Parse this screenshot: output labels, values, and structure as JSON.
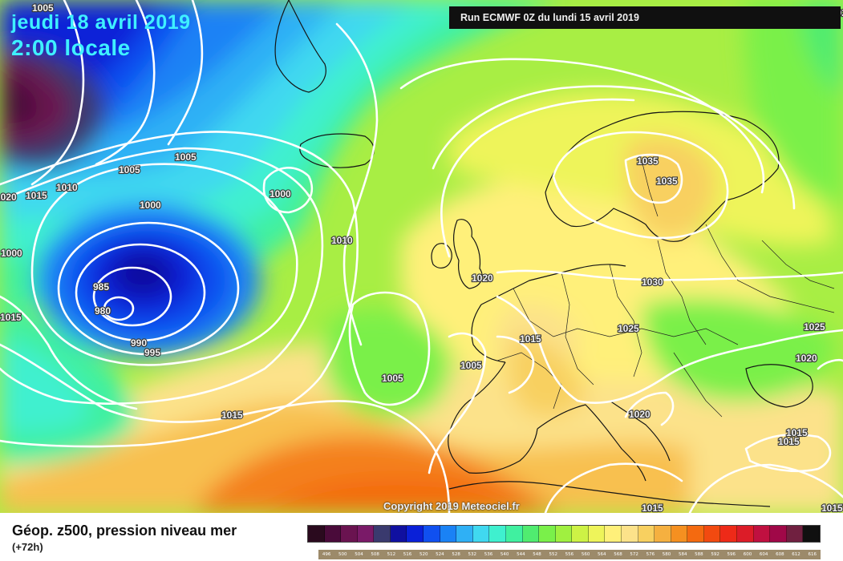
{
  "header": {
    "date_line1": "jeudi 18 avril 2019",
    "date_line2": "2:00 locale",
    "run_info": "Run ECMWF 0Z du lundi 15 avril 2019"
  },
  "copyright": "Copyright 2019 Meteociel.fr",
  "legend": {
    "title": "Géop. z500, pression niveau mer",
    "subtitle": "(+72h)",
    "scale_values": [
      "496",
      "500",
      "504",
      "508",
      "512",
      "516",
      "520",
      "524",
      "528",
      "532",
      "536",
      "540",
      "544",
      "548",
      "552",
      "556",
      "560",
      "564",
      "568",
      "572",
      "576",
      "580",
      "584",
      "588",
      "592",
      "596",
      "600",
      "604",
      "608",
      "612",
      "616"
    ],
    "scale_colors": [
      "#2a0a1e",
      "#4a0b3a",
      "#6a1350",
      "#7a1a68",
      "#3a3a6e",
      "#1010a0",
      "#0a20d8",
      "#1050f0",
      "#1a82f5",
      "#2fb0f5",
      "#40d8f0",
      "#3ff0cf",
      "#40f0a0",
      "#50ec70",
      "#7af04a",
      "#a0f040",
      "#cdf245",
      "#eef45a",
      "#fff07a",
      "#fce28a",
      "#f8d060",
      "#f5b040",
      "#f59020",
      "#f46a10",
      "#f24a10",
      "#ee2a18",
      "#dc1c28",
      "#c01040",
      "#a00848",
      "#702040",
      "#101010"
    ]
  },
  "map": {
    "pressure_labels": [
      "1005",
      "1010",
      "1015",
      "1020",
      "1015",
      "1005",
      "1005",
      "1000",
      "1000",
      "985",
      "980",
      "990",
      "995",
      "1000",
      "1010",
      "1005",
      "1005",
      "1015",
      "1020",
      "1015",
      "1020",
      "1030",
      "1035",
      "1035",
      "1025",
      "1025",
      "1020",
      "1020",
      "1015",
      "1015",
      "1015",
      "1015"
    ]
  }
}
